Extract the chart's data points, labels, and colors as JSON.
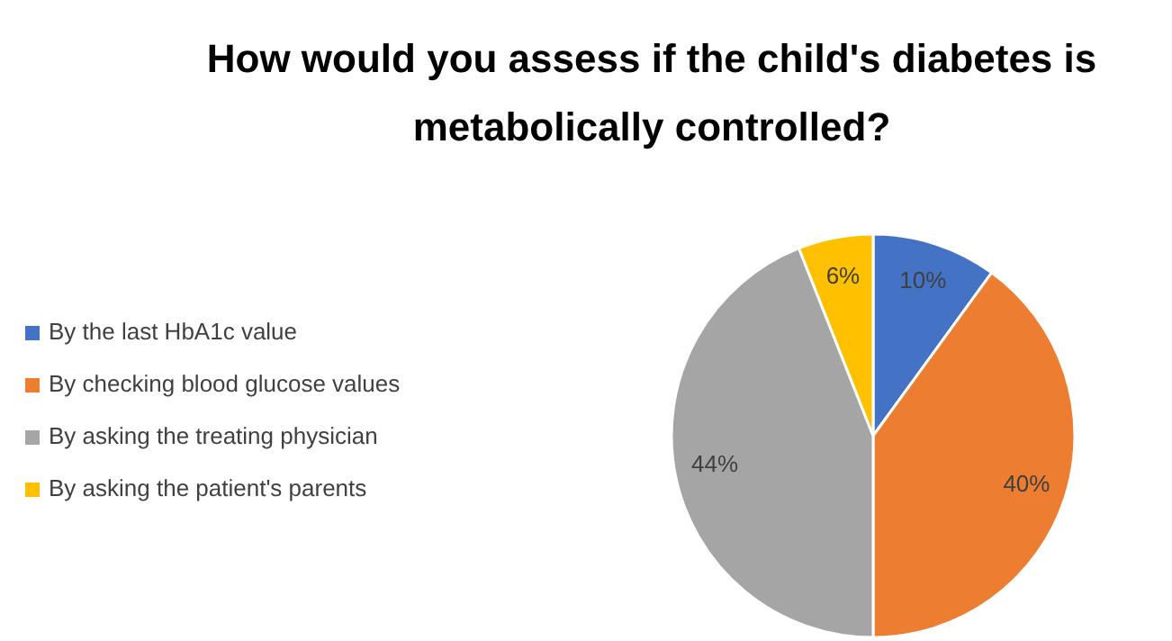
{
  "chart_data": {
    "type": "pie",
    "title": "How would you assess if the child's diabetes is metabolically controlled?",
    "categories": [
      "By the last HbA1c value",
      "By checking blood glucose values",
      "By asking the treating physician",
      "By asking the patient's parents"
    ],
    "values": [
      10,
      40,
      44,
      6
    ],
    "colors": [
      "#4472c4",
      "#ed7d31",
      "#a5a5a5",
      "#ffc000"
    ],
    "value_labels": [
      "10%",
      "40%",
      "44%",
      "6%"
    ],
    "legend": "left"
  }
}
